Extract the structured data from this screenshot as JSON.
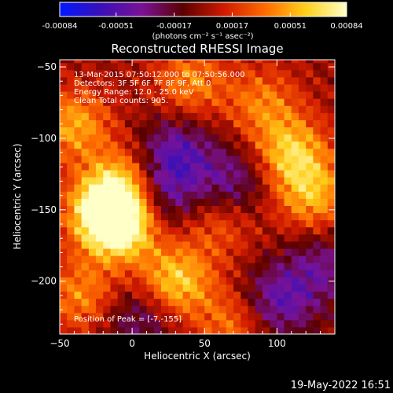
{
  "chart_data": {
    "type": "heatmap",
    "title": "Reconstructed RHESSI Image",
    "xlabel": "Heliocentric X (arcsec)",
    "ylabel": "Heliocentric Y (arcsec)",
    "xlim": [
      -50,
      140
    ],
    "ylim": [
      -237,
      -45
    ],
    "x_ticks": [
      -50,
      0,
      50,
      100
    ],
    "y_ticks": [
      -200,
      -150,
      -100,
      -50
    ],
    "colorbar": {
      "label": "(photons cm⁻² s⁻¹ asec⁻²)",
      "tick_labels": [
        "-0.00084",
        "-0.00051",
        "-0.00017",
        "0.00017",
        "0.00051",
        "0.00084"
      ],
      "range": [
        -0.00084,
        0.00084
      ],
      "colormap": [
        "#0018ff",
        "#3a10b8",
        "#7a1296",
        "#5a0000",
        "#d01a00",
        "#ff6a00",
        "#ffd01a",
        "#ffffc8"
      ]
    },
    "annotations": [
      "13-Mar-2015 07:50:12.000 to 07:50:56.000",
      "Detectors: 3F 5F 6F 7F 8F 9F, Att 0",
      "Energy Range: 12.0 - 25.0 keV",
      "Clean     Total counts: 905.",
      "Position of Peak = [-7,-155]"
    ],
    "bright_sources": [
      {
        "x": -40,
        "y": -90,
        "intensity": 0.6
      },
      {
        "x": -8,
        "y": -160,
        "intensity": 0.95
      },
      {
        "x": -20,
        "y": -150,
        "intensity": 0.8
      },
      {
        "x": -5,
        "y": -130,
        "intensity": 0.55
      },
      {
        "x": 30,
        "y": -200,
        "intensity": 0.75
      },
      {
        "x": 40,
        "y": -60,
        "intensity": 0.5
      },
      {
        "x": 110,
        "y": -110,
        "intensity": 0.7
      },
      {
        "x": 125,
        "y": -140,
        "intensity": 0.6
      },
      {
        "x": 90,
        "y": -75,
        "intensity": 0.45
      },
      {
        "x": -35,
        "y": -210,
        "intensity": 0.5
      },
      {
        "x": 70,
        "y": -230,
        "intensity": 0.45
      },
      {
        "x": 60,
        "y": -160,
        "intensity": 0.35
      }
    ],
    "dark_regions": [
      {
        "x": 30,
        "y": -110,
        "intensity": -0.55
      },
      {
        "x": 20,
        "y": -140,
        "intensity": -0.5
      },
      {
        "x": 70,
        "y": -130,
        "intensity": -0.45
      },
      {
        "x": 100,
        "y": -215,
        "intensity": -0.55
      },
      {
        "x": 5,
        "y": -225,
        "intensity": -0.4
      },
      {
        "x": 130,
        "y": -190,
        "intensity": -0.4
      }
    ]
  },
  "timestamp": "19-May-2022 16:51"
}
